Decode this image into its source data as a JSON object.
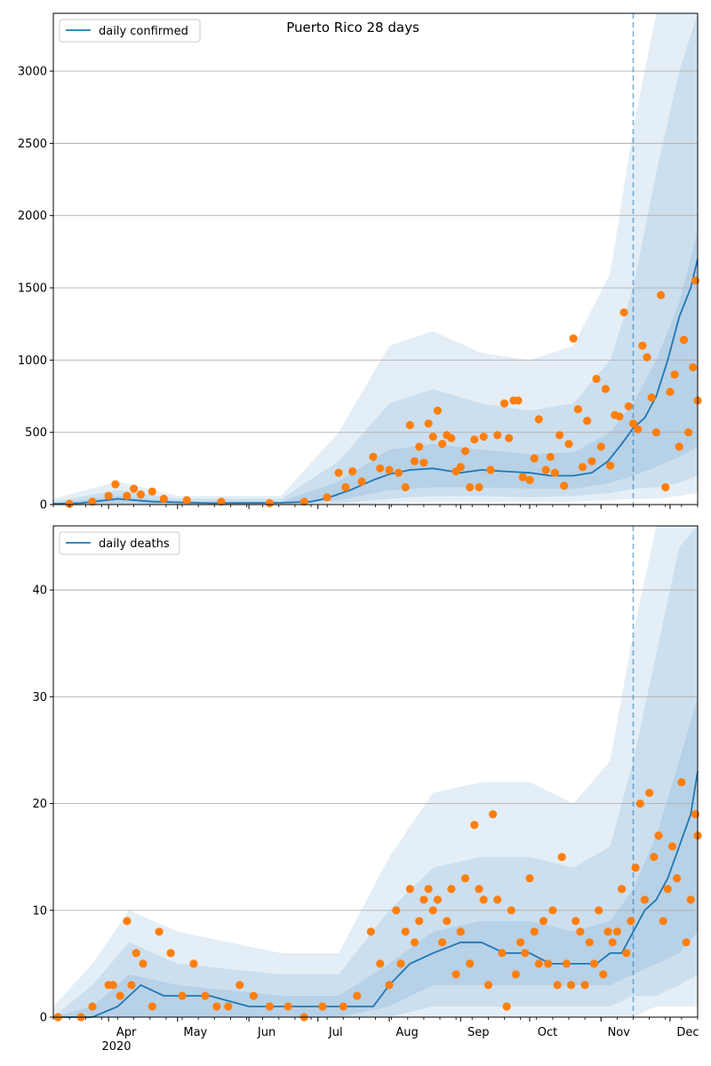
{
  "figure": {
    "title": "Puerto Rico 28 days"
  },
  "colors": {
    "model_line": "#1f77b4",
    "observed_points": "#ff7f0e",
    "band": "#1f77b4",
    "grid": "#b0b0b0",
    "forecast_marker": "#1f77b4"
  },
  "x_axis": {
    "month_labels": [
      "Apr",
      "May",
      "Jun",
      "Jul",
      "Aug",
      "Sep",
      "Oct",
      "Nov",
      "Dec"
    ],
    "year_label": "2020"
  },
  "chart_data": [
    {
      "type": "line",
      "legend": "daily confirmed",
      "title": "",
      "xlabel": "",
      "ylabel": "",
      "x_range": [
        "2020-03-08",
        "2020-12-13"
      ],
      "ylim": [
        0,
        3400
      ],
      "yticks": [
        0,
        500,
        1000,
        1500,
        2000,
        2500,
        3000
      ],
      "grid": "horizontal",
      "legend_position": "top-left",
      "forecast_start": "2020-11-15",
      "model": {
        "x": [
          "2020-03-08",
          "2020-03-20",
          "2020-04-05",
          "2020-04-20",
          "2020-05-15",
          "2020-06-15",
          "2020-06-28",
          "2020-07-05",
          "2020-07-15",
          "2020-07-25",
          "2020-08-01",
          "2020-08-10",
          "2020-08-20",
          "2020-09-01",
          "2020-09-10",
          "2020-09-20",
          "2020-10-01",
          "2020-10-10",
          "2020-10-20",
          "2020-10-28",
          "2020-11-04",
          "2020-11-10",
          "2020-11-15",
          "2020-11-20",
          "2020-11-25",
          "2020-11-30",
          "2020-12-05",
          "2020-12-10",
          "2020-12-13"
        ],
        "y": [
          5,
          10,
          40,
          20,
          10,
          12,
          20,
          45,
          100,
          170,
          210,
          240,
          250,
          220,
          240,
          230,
          220,
          200,
          200,
          220,
          300,
          420,
          530,
          600,
          750,
          1000,
          1300,
          1500,
          1700
        ]
      },
      "bands": [
        {
          "x": [
            "2020-03-08",
            "2020-04-05",
            "2020-05-01",
            "2020-06-15",
            "2020-07-10",
            "2020-08-01",
            "2020-08-20",
            "2020-09-10",
            "2020-10-01",
            "2020-10-20",
            "2020-11-05",
            "2020-11-15",
            "2020-11-25",
            "2020-12-05",
            "2020-12-13"
          ],
          "lower": [
            0,
            0,
            0,
            0,
            30,
            100,
            120,
            120,
            110,
            110,
            150,
            200,
            260,
            330,
            400
          ],
          "upper": [
            10,
            60,
            20,
            20,
            160,
            380,
            420,
            380,
            350,
            360,
            500,
            700,
            1000,
            1400,
            1900
          ]
        },
        {
          "x": [
            "2020-03-08",
            "2020-04-05",
            "2020-05-01",
            "2020-06-15",
            "2020-07-10",
            "2020-08-01",
            "2020-08-20",
            "2020-09-10",
            "2020-10-01",
            "2020-10-20",
            "2020-11-05",
            "2020-11-15",
            "2020-11-25",
            "2020-12-05",
            "2020-12-13"
          ],
          "lower": [
            0,
            0,
            0,
            0,
            10,
            40,
            60,
            60,
            50,
            60,
            80,
            110,
            120,
            150,
            200
          ],
          "upper": [
            20,
            100,
            40,
            40,
            300,
            700,
            800,
            700,
            650,
            700,
            1000,
            1500,
            2300,
            3000,
            3400
          ]
        },
        {
          "x": [
            "2020-03-08",
            "2020-04-05",
            "2020-05-01",
            "2020-06-15",
            "2020-07-10",
            "2020-08-01",
            "2020-08-20",
            "2020-09-10",
            "2020-10-01",
            "2020-10-20",
            "2020-11-05",
            "2020-11-15",
            "2020-11-25",
            "2020-12-05",
            "2020-12-13"
          ],
          "lower": [
            0,
            0,
            0,
            0,
            0,
            10,
            20,
            20,
            20,
            20,
            30,
            40,
            40,
            60,
            80
          ],
          "upper": [
            40,
            160,
            60,
            60,
            500,
            1100,
            1200,
            1050,
            1000,
            1100,
            1600,
            2600,
            3400,
            3400,
            3400
          ]
        }
      ],
      "observed": {
        "x": [
          "2020-03-15",
          "2020-03-25",
          "2020-04-01",
          "2020-04-04",
          "2020-04-09",
          "2020-04-12",
          "2020-04-15",
          "2020-04-20",
          "2020-04-25",
          "2020-05-05",
          "2020-05-20",
          "2020-06-10",
          "2020-06-25",
          "2020-07-05",
          "2020-07-10",
          "2020-07-13",
          "2020-07-16",
          "2020-07-20",
          "2020-07-25",
          "2020-07-28",
          "2020-08-01",
          "2020-08-05",
          "2020-08-08",
          "2020-08-10",
          "2020-08-12",
          "2020-08-14",
          "2020-08-16",
          "2020-08-18",
          "2020-08-20",
          "2020-08-22",
          "2020-08-24",
          "2020-08-26",
          "2020-08-28",
          "2020-08-30",
          "2020-09-01",
          "2020-09-03",
          "2020-09-05",
          "2020-09-07",
          "2020-09-09",
          "2020-09-11",
          "2020-09-14",
          "2020-09-17",
          "2020-09-20",
          "2020-09-22",
          "2020-09-24",
          "2020-09-26",
          "2020-09-28",
          "2020-10-01",
          "2020-10-03",
          "2020-10-05",
          "2020-10-08",
          "2020-10-10",
          "2020-10-12",
          "2020-10-14",
          "2020-10-16",
          "2020-10-18",
          "2020-10-20",
          "2020-10-22",
          "2020-10-24",
          "2020-10-26",
          "2020-10-28",
          "2020-10-30",
          "2020-11-01",
          "2020-11-03",
          "2020-11-05",
          "2020-11-07",
          "2020-11-09",
          "2020-11-11",
          "2020-11-13",
          "2020-11-15",
          "2020-11-17",
          "2020-11-19",
          "2020-11-21",
          "2020-11-23",
          "2020-11-25",
          "2020-11-27",
          "2020-11-29",
          "2020-12-01",
          "2020-12-03",
          "2020-12-05",
          "2020-12-07",
          "2020-12-09",
          "2020-12-11",
          "2020-12-12",
          "2020-12-13"
        ],
        "y": [
          5,
          20,
          60,
          140,
          60,
          110,
          70,
          90,
          40,
          30,
          20,
          10,
          20,
          50,
          220,
          120,
          230,
          160,
          330,
          250,
          240,
          220,
          120,
          550,
          300,
          400,
          290,
          560,
          470,
          650,
          420,
          480,
          460,
          230,
          260,
          370,
          120,
          450,
          120,
          470,
          240,
          480,
          700,
          460,
          720,
          720,
          190,
          170,
          320,
          590,
          240,
          330,
          220,
          480,
          130,
          420,
          1150,
          660,
          260,
          580,
          300,
          870,
          400,
          800,
          270,
          620,
          610,
          1330,
          680,
          560,
          520,
          1100,
          1020,
          740,
          500,
          1450,
          120,
          780,
          900,
          400,
          1140,
          500,
          950,
          1550,
          720
        ],
        "note": ""
      }
    },
    {
      "type": "line",
      "legend": "daily deaths",
      "title": "",
      "xlabel": "",
      "ylabel": "",
      "x_range": [
        "2020-03-08",
        "2020-12-13"
      ],
      "ylim": [
        0,
        46
      ],
      "yticks": [
        0,
        10,
        20,
        30,
        40
      ],
      "grid": "horizontal",
      "legend_position": "top-left",
      "forecast_start": "2020-11-15",
      "model": {
        "x": [
          "2020-03-08",
          "2020-03-25",
          "2020-04-05",
          "2020-04-10",
          "2020-04-15",
          "2020-04-25",
          "2020-05-15",
          "2020-06-01",
          "2020-06-20",
          "2020-07-05",
          "2020-07-15",
          "2020-07-25",
          "2020-08-01",
          "2020-08-10",
          "2020-08-20",
          "2020-09-01",
          "2020-09-10",
          "2020-09-20",
          "2020-10-01",
          "2020-10-10",
          "2020-10-20",
          "2020-10-30",
          "2020-11-05",
          "2020-11-10",
          "2020-11-15",
          "2020-11-20",
          "2020-11-25",
          "2020-11-30",
          "2020-12-05",
          "2020-12-10",
          "2020-12-13"
        ],
        "y": [
          0,
          0,
          1,
          2,
          3,
          2,
          2,
          1,
          1,
          1,
          1,
          1,
          3,
          5,
          6,
          7,
          7,
          6,
          6,
          5,
          5,
          5,
          6,
          6,
          8,
          10,
          11,
          13,
          16,
          19,
          23
        ]
      },
      "bands": [
        {
          "x": [
            "2020-03-08",
            "2020-03-25",
            "2020-04-10",
            "2020-05-01",
            "2020-06-15",
            "2020-07-10",
            "2020-08-01",
            "2020-08-20",
            "2020-09-10",
            "2020-10-01",
            "2020-10-20",
            "2020-11-05",
            "2020-11-15",
            "2020-11-25",
            "2020-12-05",
            "2020-12-13"
          ],
          "lower": [
            0,
            0,
            0,
            0,
            0,
            0,
            1,
            3,
            3,
            3,
            3,
            3,
            4,
            5,
            6,
            8
          ],
          "upper": [
            0,
            1,
            4,
            3,
            2,
            2,
            5,
            8,
            9,
            9,
            8,
            9,
            12,
            17,
            24,
            30
          ]
        },
        {
          "x": [
            "2020-03-08",
            "2020-03-25",
            "2020-04-10",
            "2020-05-01",
            "2020-06-15",
            "2020-07-10",
            "2020-08-01",
            "2020-08-20",
            "2020-09-10",
            "2020-10-01",
            "2020-10-20",
            "2020-11-05",
            "2020-11-15",
            "2020-11-25",
            "2020-12-05",
            "2020-12-13"
          ],
          "lower": [
            0,
            0,
            0,
            0,
            0,
            0,
            0,
            1,
            1,
            1,
            1,
            1,
            2,
            2,
            3,
            4
          ],
          "upper": [
            0,
            3,
            7,
            5,
            4,
            4,
            10,
            14,
            15,
            15,
            14,
            16,
            24,
            34,
            44,
            46
          ]
        },
        {
          "x": [
            "2020-03-08",
            "2020-03-25",
            "2020-04-10",
            "2020-05-01",
            "2020-06-15",
            "2020-07-10",
            "2020-08-01",
            "2020-08-20",
            "2020-09-10",
            "2020-10-01",
            "2020-10-20",
            "2020-11-05",
            "2020-11-15",
            "2020-11-25",
            "2020-12-05",
            "2020-12-13"
          ],
          "lower": [
            0,
            0,
            0,
            0,
            0,
            0,
            0,
            0,
            0,
            0,
            0,
            0,
            0,
            1,
            1,
            1
          ],
          "upper": [
            1,
            5,
            10,
            8,
            6,
            6,
            15,
            21,
            22,
            22,
            20,
            24,
            36,
            46,
            46,
            46
          ]
        }
      ],
      "observed": {
        "x": [
          "2020-03-10",
          "2020-03-20",
          "2020-03-25",
          "2020-04-01",
          "2020-04-03",
          "2020-04-06",
          "2020-04-09",
          "2020-04-11",
          "2020-04-13",
          "2020-04-16",
          "2020-04-20",
          "2020-04-23",
          "2020-04-28",
          "2020-05-03",
          "2020-05-08",
          "2020-05-13",
          "2020-05-18",
          "2020-05-23",
          "2020-05-28",
          "2020-06-03",
          "2020-06-10",
          "2020-06-18",
          "2020-06-25",
          "2020-07-03",
          "2020-07-12",
          "2020-07-18",
          "2020-07-24",
          "2020-07-28",
          "2020-08-01",
          "2020-08-04",
          "2020-08-06",
          "2020-08-08",
          "2020-08-10",
          "2020-08-12",
          "2020-08-14",
          "2020-08-16",
          "2020-08-18",
          "2020-08-20",
          "2020-08-22",
          "2020-08-24",
          "2020-08-26",
          "2020-08-28",
          "2020-08-30",
          "2020-09-01",
          "2020-09-03",
          "2020-09-05",
          "2020-09-07",
          "2020-09-09",
          "2020-09-11",
          "2020-09-13",
          "2020-09-15",
          "2020-09-17",
          "2020-09-19",
          "2020-09-21",
          "2020-09-23",
          "2020-09-25",
          "2020-09-27",
          "2020-09-29",
          "2020-10-01",
          "2020-10-03",
          "2020-10-05",
          "2020-10-07",
          "2020-10-09",
          "2020-10-11",
          "2020-10-13",
          "2020-10-15",
          "2020-10-17",
          "2020-10-19",
          "2020-10-21",
          "2020-10-23",
          "2020-10-25",
          "2020-10-27",
          "2020-10-29",
          "2020-10-31",
          "2020-11-02",
          "2020-11-04",
          "2020-11-06",
          "2020-11-08",
          "2020-11-10",
          "2020-11-12",
          "2020-11-14",
          "2020-11-16",
          "2020-11-18",
          "2020-11-20",
          "2020-11-22",
          "2020-11-24",
          "2020-11-26",
          "2020-11-28",
          "2020-11-30",
          "2020-12-02",
          "2020-12-04",
          "2020-12-06",
          "2020-12-08",
          "2020-12-10",
          "2020-12-12",
          "2020-12-13"
        ],
        "y": [
          0,
          0,
          1,
          3,
          3,
          2,
          9,
          3,
          6,
          5,
          1,
          8,
          6,
          2,
          5,
          2,
          1,
          1,
          3,
          2,
          1,
          1,
          0,
          1,
          1,
          2,
          8,
          5,
          3,
          10,
          5,
          8,
          12,
          7,
          9,
          11,
          12,
          10,
          11,
          7,
          9,
          12,
          4,
          8,
          13,
          5,
          18,
          12,
          11,
          3,
          19,
          11,
          6,
          1,
          10,
          4,
          7,
          6,
          13,
          8,
          5,
          9,
          5,
          10,
          3,
          15,
          5,
          3,
          9,
          8,
          3,
          7,
          5,
          10,
          4,
          8,
          7,
          8,
          12,
          6,
          9,
          14,
          20,
          11,
          21,
          15,
          17,
          9,
          12,
          16,
          13,
          22,
          7,
          11,
          19,
          17
        ]
      }
    }
  ]
}
